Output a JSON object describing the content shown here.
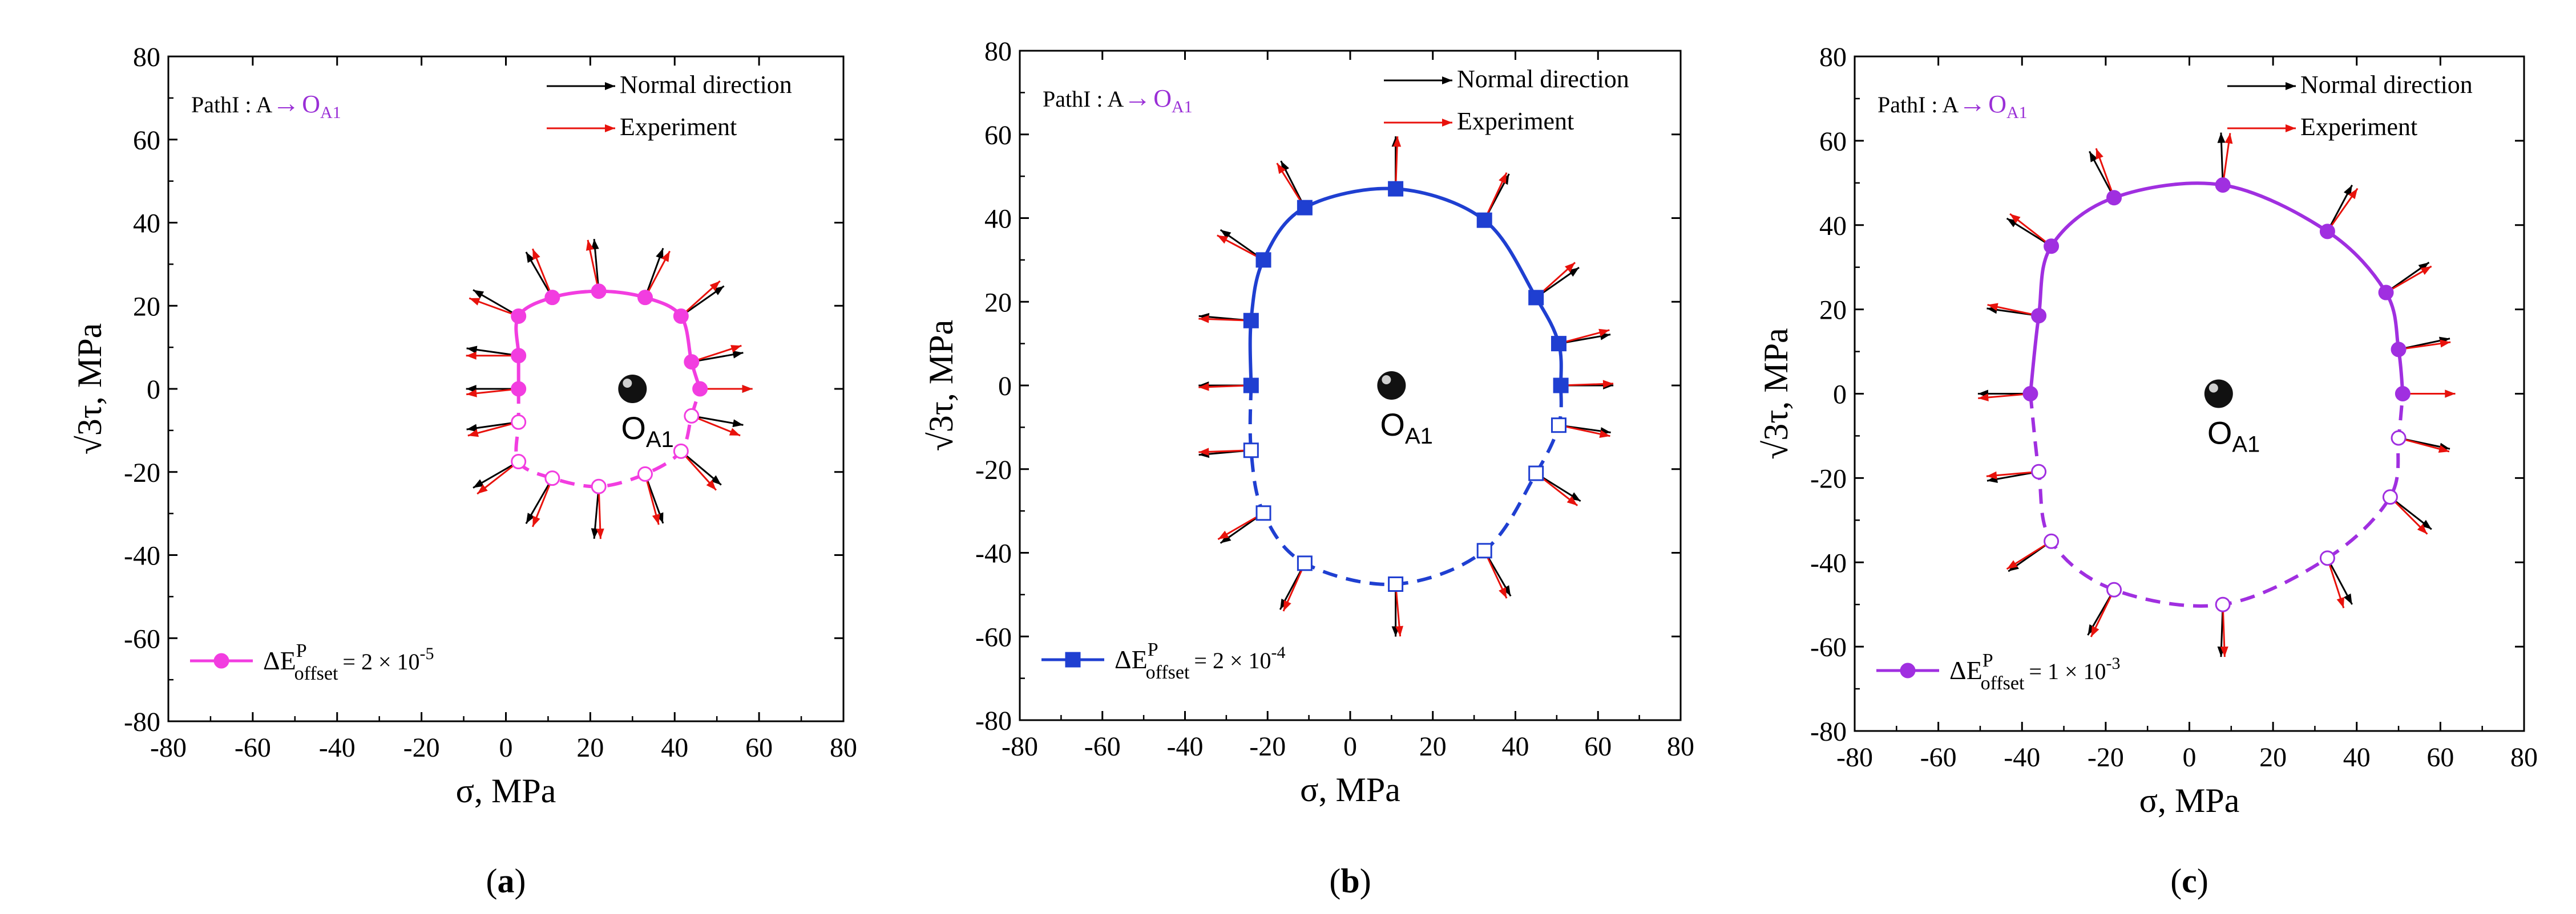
{
  "figure": {
    "ball_label_main": "O",
    "ball_label_sub": "A1",
    "arrow_normal_label": "Normal direction",
    "arrow_exp_label": "Experiment",
    "path_prefix": "PathI   : A",
    "path_arrow": "→",
    "path_target_main": "O",
    "path_target_sub": "A1",
    "legend_delta": "ΔE",
    "legend_sup": "P",
    "legend_sub": "offset",
    "colors": {
      "normal_arrow": "#000000",
      "experiment_arrow": "#e8120c",
      "axis": "#000000",
      "path_target": "#9a2fd6"
    }
  },
  "chart_data": [
    {
      "panel": "(a)",
      "panel_letter": "a",
      "type": "scatter",
      "title": "",
      "xlabel": "σ, MPa",
      "ylabel": "√3τ, MPa",
      "xlim": [
        -80,
        80
      ],
      "ylim": [
        -80,
        80
      ],
      "xticks": [
        "-80",
        "-60",
        "-40",
        "-20",
        "0",
        "20",
        "40",
        "60",
        "80"
      ],
      "yticks": [
        "80",
        "60",
        "40",
        "20",
        "0",
        "-20",
        "-40",
        "-60",
        "-80"
      ],
      "color": "#f23de0",
      "marker": "circle",
      "legend_value": "= 2 × 10",
      "legend_exp": "-5",
      "center": [
        30,
        0
      ],
      "points_solid": [
        [
          3,
          0
        ],
        [
          3,
          8
        ],
        [
          3,
          17.5
        ],
        [
          11,
          22
        ],
        [
          22,
          23.5
        ],
        [
          33,
          22
        ],
        [
          41.5,
          17.5
        ],
        [
          44,
          6.5
        ],
        [
          46,
          0
        ]
      ],
      "points_open": [
        [
          3,
          -8
        ],
        [
          3,
          -17.5
        ],
        [
          11,
          -21.5
        ],
        [
          22,
          -23.5
        ],
        [
          33,
          -20.5
        ],
        [
          41.5,
          -15
        ],
        [
          44,
          -6.5
        ]
      ],
      "normal_angles": [
        180,
        172,
        150,
        120,
        95,
        70,
        35,
        10,
        0,
        188,
        210,
        240,
        265,
        290,
        320,
        350
      ],
      "exp_angles": [
        186,
        180,
        160,
        112,
        102,
        62,
        42,
        18,
        0,
        195,
        218,
        248,
        272,
        285,
        312,
        338
      ]
    },
    {
      "panel": "(b)",
      "panel_letter": "b",
      "type": "scatter",
      "title": "",
      "xlabel": "σ, MPa",
      "ylabel": "√3τ, MPa",
      "xlim": [
        -80,
        80
      ],
      "ylim": [
        -80,
        80
      ],
      "xticks": [
        "-80",
        "-60",
        "-40",
        "-20",
        "0",
        "20",
        "40",
        "60",
        "80"
      ],
      "yticks": [
        "80",
        "60",
        "40",
        "20",
        "0",
        "-20",
        "-40",
        "-60",
        "-80"
      ],
      "color": "#1f3fd1",
      "marker": "square",
      "legend_value": "= 2 × 10",
      "legend_exp": "-4",
      "center": [
        10,
        0
      ],
      "points_solid": [
        [
          -24,
          0
        ],
        [
          -24,
          15.5
        ],
        [
          -21,
          30
        ],
        [
          -11,
          42.5
        ],
        [
          11,
          47
        ],
        [
          32.5,
          39.5
        ],
        [
          45,
          21
        ],
        [
          50.5,
          10
        ],
        [
          51,
          0
        ]
      ],
      "points_open": [
        [
          -24,
          -15.5
        ],
        [
          -21,
          -30.5
        ],
        [
          -11,
          -42.5
        ],
        [
          11,
          -47.5
        ],
        [
          32.5,
          -39.5
        ],
        [
          45,
          -21
        ],
        [
          50.5,
          -9.5
        ]
      ],
      "normal_angles": [
        180,
        175,
        145,
        117,
        90,
        62,
        35,
        10,
        0,
        185,
        215,
        242,
        270,
        300,
        328,
        352
      ],
      "exp_angles": [
        182,
        178,
        152,
        122,
        88,
        65,
        42,
        15,
        2,
        182,
        210,
        246,
        275,
        295,
        322,
        348
      ]
    },
    {
      "panel": "(c)",
      "panel_letter": "c",
      "type": "scatter",
      "title": "",
      "xlabel": "σ, MPa",
      "ylabel": "√3τ, MPa",
      "xlim": [
        -80,
        80
      ],
      "ylim": [
        -80,
        80
      ],
      "xticks": [
        "-80",
        "-60",
        "-40",
        "-20",
        "0",
        "20",
        "40",
        "60",
        "80"
      ],
      "yticks": [
        "80",
        "60",
        "40",
        "20",
        "0",
        "-20",
        "-40",
        "-60",
        "-80"
      ],
      "color": "#a02fe0",
      "marker": "circle",
      "legend_value": "= 1 × 10",
      "legend_exp": "-3",
      "center": [
        7,
        0
      ],
      "points_solid": [
        [
          -38,
          0
        ],
        [
          -36,
          18.5
        ],
        [
          -33,
          35
        ],
        [
          -18,
          46.5
        ],
        [
          8,
          49.5
        ],
        [
          33,
          38.5
        ],
        [
          47,
          24
        ],
        [
          50,
          10.5
        ],
        [
          51,
          0
        ]
      ],
      "points_open": [
        [
          -36,
          -18.5
        ],
        [
          -33,
          -35
        ],
        [
          -18,
          -46.5
        ],
        [
          8,
          -50
        ],
        [
          33,
          -39
        ],
        [
          48,
          -24.5
        ],
        [
          50,
          -10.5
        ]
      ],
      "normal_angles": [
        180,
        172,
        148,
        118,
        92,
        62,
        35,
        12,
        0,
        190,
        215,
        240,
        268,
        298,
        322,
        348
      ],
      "exp_angles": [
        185,
        168,
        142,
        110,
        82,
        55,
        30,
        8,
        0,
        185,
        212,
        244,
        272,
        288,
        315,
        345
      ]
    }
  ]
}
